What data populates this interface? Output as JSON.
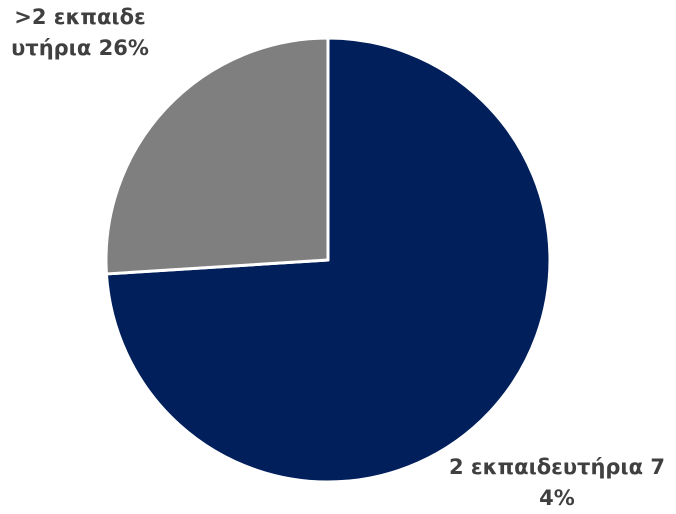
{
  "chart_data": {
    "type": "pie",
    "categories": [
      "2 εκπαιδευτήρια",
      ">2 εκπαιδευτήρια"
    ],
    "values": [
      74,
      26
    ],
    "value_labels": [
      "74%",
      "26%"
    ],
    "colors": [
      "#001f5b",
      "#7f7f7f"
    ]
  }
}
